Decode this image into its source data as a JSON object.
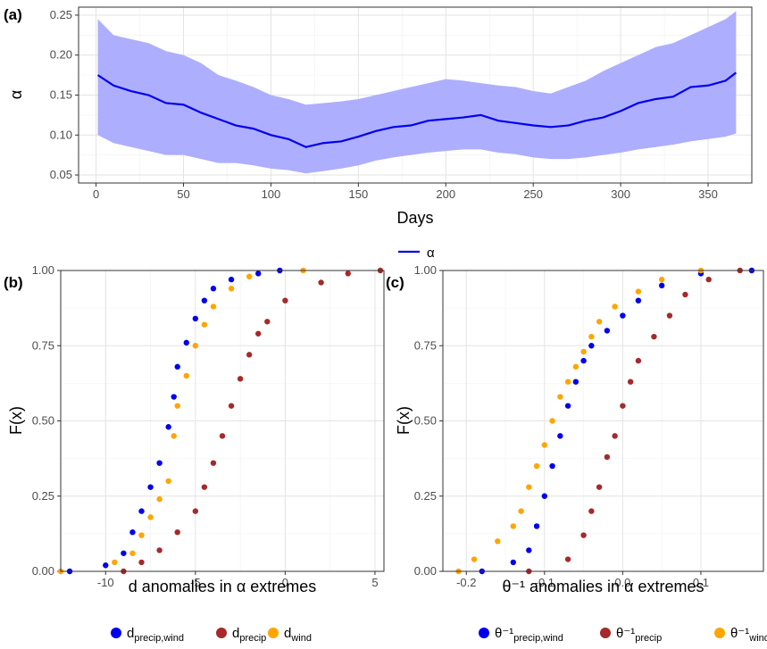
{
  "chart_data": [
    {
      "panel": "(a)",
      "type": "area",
      "title": "",
      "xlabel": "Days",
      "ylabel": "α",
      "xlim": [
        -10,
        375
      ],
      "ylim": [
        0.04,
        0.26
      ],
      "x_ticks": [
        0,
        50,
        100,
        150,
        200,
        250,
        300,
        350
      ],
      "y_ticks": [
        0.05,
        0.1,
        0.15,
        0.2,
        0.25
      ],
      "grid": true,
      "legend": {
        "position": "bottom",
        "entries": [
          "α"
        ]
      },
      "line_color": "#0000ee",
      "band_color": "#aaaaff",
      "series": [
        {
          "name": "α",
          "x": [
            1,
            10,
            20,
            30,
            40,
            50,
            60,
            70,
            80,
            90,
            100,
            110,
            120,
            130,
            140,
            150,
            160,
            170,
            180,
            190,
            200,
            210,
            220,
            230,
            240,
            250,
            260,
            270,
            280,
            290,
            300,
            310,
            320,
            330,
            340,
            350,
            360,
            366
          ],
          "y": [
            0.175,
            0.162,
            0.155,
            0.15,
            0.14,
            0.138,
            0.128,
            0.12,
            0.112,
            0.108,
            0.1,
            0.095,
            0.085,
            0.09,
            0.092,
            0.098,
            0.105,
            0.11,
            0.112,
            0.118,
            0.12,
            0.122,
            0.125,
            0.118,
            0.115,
            0.112,
            0.11,
            0.112,
            0.118,
            0.122,
            0.13,
            0.14,
            0.145,
            0.148,
            0.16,
            0.162,
            0.168,
            0.178
          ],
          "lower": [
            0.1,
            0.09,
            0.085,
            0.08,
            0.075,
            0.075,
            0.07,
            0.065,
            0.065,
            0.062,
            0.058,
            0.056,
            0.052,
            0.055,
            0.058,
            0.062,
            0.068,
            0.072,
            0.075,
            0.078,
            0.08,
            0.082,
            0.082,
            0.078,
            0.076,
            0.072,
            0.07,
            0.07,
            0.072,
            0.075,
            0.078,
            0.082,
            0.085,
            0.088,
            0.092,
            0.095,
            0.098,
            0.102
          ],
          "upper": [
            0.245,
            0.225,
            0.22,
            0.215,
            0.205,
            0.2,
            0.19,
            0.175,
            0.168,
            0.16,
            0.15,
            0.145,
            0.138,
            0.14,
            0.142,
            0.145,
            0.15,
            0.155,
            0.16,
            0.165,
            0.17,
            0.168,
            0.165,
            0.162,
            0.16,
            0.155,
            0.152,
            0.16,
            0.168,
            0.18,
            0.19,
            0.2,
            0.21,
            0.215,
            0.225,
            0.235,
            0.245,
            0.255
          ]
        }
      ]
    },
    {
      "panel": "(b)",
      "type": "scatter",
      "title": "",
      "xlabel": "d anomalies in α extremes",
      "ylabel": "F(x)",
      "xlim": [
        -12.5,
        5.5
      ],
      "ylim": [
        0,
        1
      ],
      "x_ticks": [
        -10,
        -5,
        0,
        5
      ],
      "y_ticks": [
        0.0,
        0.25,
        0.5,
        0.75,
        1.0
      ],
      "grid": true,
      "legend": {
        "position": "bottom",
        "entries": [
          {
            "base": "d",
            "sub": "precip,wind",
            "color": "#0000ee"
          },
          {
            "base": "d",
            "sub": "precip",
            "color": "#a52a2a"
          },
          {
            "base": "d",
            "sub": "wind",
            "color": "#ffa500"
          }
        ]
      },
      "series": [
        {
          "name": "d precip,wind",
          "color": "#0000ee",
          "x": [
            -12,
            -10,
            -9,
            -8.5,
            -8,
            -7.5,
            -7,
            -6.5,
            -6.2,
            -6,
            -5.5,
            -5,
            -4.5,
            -4,
            -3,
            -1.5,
            -0.3
          ],
          "y": [
            0.0,
            0.02,
            0.06,
            0.13,
            0.2,
            0.28,
            0.36,
            0.48,
            0.58,
            0.68,
            0.76,
            0.84,
            0.9,
            0.94,
            0.97,
            0.99,
            1.0
          ]
        },
        {
          "name": "d precip",
          "color": "#a52a2a",
          "x": [
            -9,
            -8,
            -7,
            -6,
            -5,
            -4.5,
            -4,
            -3.5,
            -3,
            -2.5,
            -2,
            -1.5,
            -1,
            0,
            2,
            3.5,
            5.3
          ],
          "y": [
            0.0,
            0.03,
            0.07,
            0.13,
            0.2,
            0.28,
            0.36,
            0.45,
            0.55,
            0.64,
            0.72,
            0.79,
            0.83,
            0.9,
            0.96,
            0.99,
            1.0
          ]
        },
        {
          "name": "d wind",
          "color": "#ffa500",
          "x": [
            -12.5,
            -9.5,
            -8.5,
            -8,
            -7.5,
            -7,
            -6.5,
            -6.2,
            -6,
            -5.5,
            -5,
            -4.5,
            -4,
            -3,
            -2,
            1
          ],
          "y": [
            0.0,
            0.03,
            0.06,
            0.12,
            0.18,
            0.24,
            0.3,
            0.45,
            0.55,
            0.65,
            0.75,
            0.82,
            0.88,
            0.94,
            0.98,
            1.0
          ]
        }
      ]
    },
    {
      "panel": "(c)",
      "type": "scatter",
      "title": "",
      "xlabel": "θ⁻¹ anomalies in α extremes",
      "ylabel": "F(x)",
      "xlim": [
        -0.23,
        0.18
      ],
      "ylim": [
        0,
        1
      ],
      "x_ticks": [
        -0.2,
        -0.1,
        0.0,
        0.1
      ],
      "y_ticks": [
        0.0,
        0.25,
        0.5,
        0.75,
        1.0
      ],
      "grid": true,
      "legend": {
        "position": "bottom",
        "entries": [
          {
            "base": "θ⁻¹",
            "sub": "precip,wind",
            "color": "#0000ee"
          },
          {
            "base": "θ⁻¹",
            "sub": "precip",
            "color": "#a52a2a"
          },
          {
            "base": "θ⁻¹",
            "sub": "wind",
            "color": "#ffa500"
          }
        ]
      },
      "series": [
        {
          "name": "θ⁻¹ precip,wind",
          "color": "#0000ee",
          "x": [
            -0.18,
            -0.14,
            -0.12,
            -0.11,
            -0.1,
            -0.09,
            -0.08,
            -0.07,
            -0.06,
            -0.05,
            -0.04,
            -0.02,
            0.0,
            0.02,
            0.05,
            0.1,
            0.165
          ],
          "y": [
            0.0,
            0.03,
            0.07,
            0.15,
            0.25,
            0.35,
            0.45,
            0.55,
            0.63,
            0.7,
            0.75,
            0.8,
            0.85,
            0.9,
            0.95,
            0.99,
            1.0
          ]
        },
        {
          "name": "θ⁻¹ precip",
          "color": "#a52a2a",
          "x": [
            -0.12,
            -0.07,
            -0.05,
            -0.04,
            -0.03,
            -0.02,
            -0.01,
            0.0,
            0.01,
            0.02,
            0.04,
            0.06,
            0.08,
            0.11,
            0.15
          ],
          "y": [
            0.0,
            0.04,
            0.12,
            0.2,
            0.28,
            0.38,
            0.45,
            0.55,
            0.63,
            0.7,
            0.78,
            0.85,
            0.92,
            0.97,
            1.0
          ]
        },
        {
          "name": "θ⁻¹ wind",
          "color": "#ffa500",
          "x": [
            -0.21,
            -0.19,
            -0.16,
            -0.14,
            -0.13,
            -0.12,
            -0.11,
            -0.1,
            -0.09,
            -0.08,
            -0.07,
            -0.06,
            -0.05,
            -0.04,
            -0.03,
            -0.01,
            0.02,
            0.05,
            0.1
          ],
          "y": [
            0.0,
            0.04,
            0.1,
            0.15,
            0.2,
            0.28,
            0.35,
            0.42,
            0.5,
            0.58,
            0.63,
            0.68,
            0.73,
            0.78,
            0.83,
            0.88,
            0.93,
            0.97,
            1.0
          ]
        }
      ]
    }
  ]
}
